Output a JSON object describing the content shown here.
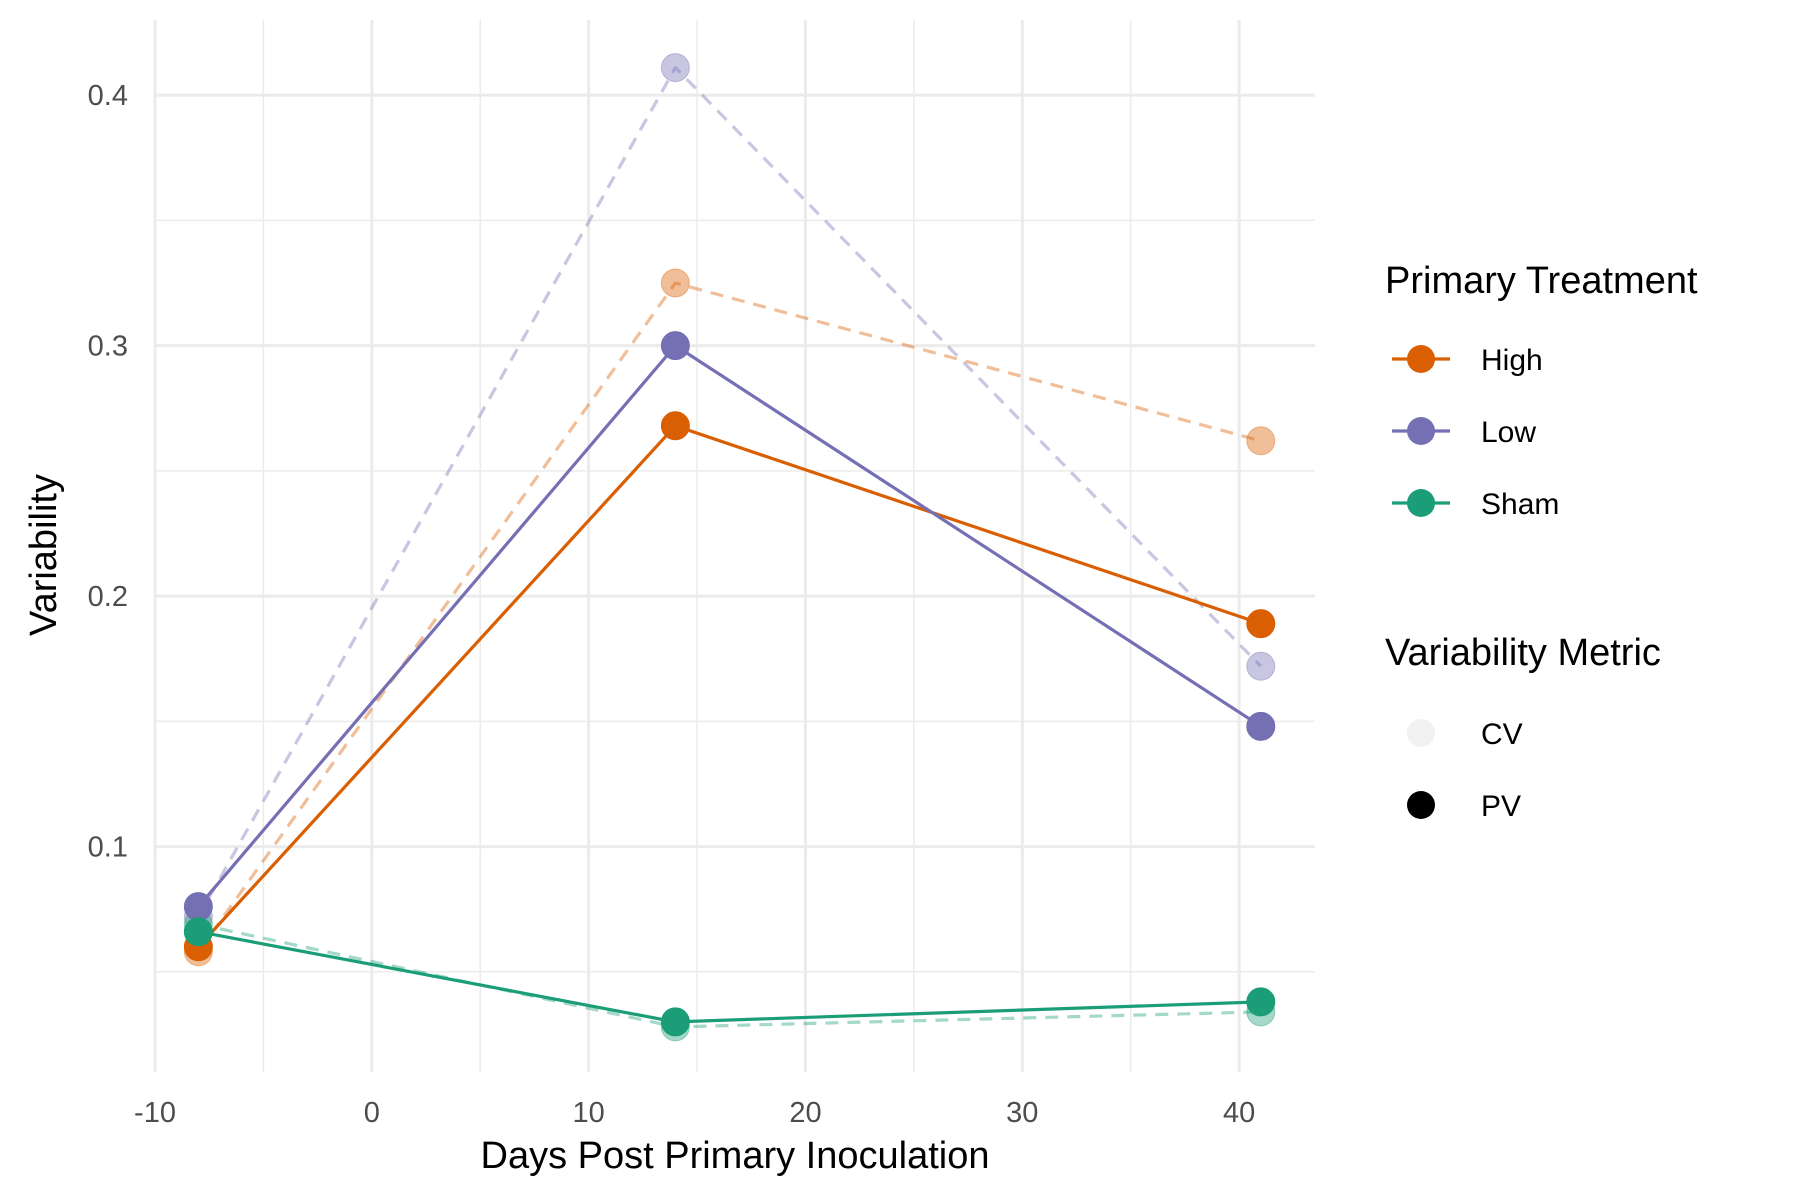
{
  "chart_data": {
    "type": "line",
    "xlabel": "Days Post Primary Inoculation",
    "ylabel": "Variability",
    "xlim": [
      -10,
      43.5
    ],
    "ylim": [
      0.01,
      0.43
    ],
    "x_ticks": [
      -10,
      0,
      10,
      20,
      30,
      40
    ],
    "x_tick_labels": [
      "-10",
      "0",
      "10",
      "20",
      "30",
      "40"
    ],
    "y_ticks": [
      0.1,
      0.2,
      0.3,
      0.4
    ],
    "y_tick_labels": [
      "0.1",
      "0.2",
      "0.3",
      "0.4"
    ],
    "grid": true,
    "legend_position": "right",
    "x": [
      -8,
      14,
      41
    ],
    "series": [
      {
        "treatment": "High",
        "metric": "CV",
        "color": "#d95f02",
        "values": [
          0.058,
          0.325,
          0.262
        ]
      },
      {
        "treatment": "Low",
        "metric": "CV",
        "color": "#7570b3",
        "values": [
          0.072,
          0.411,
          0.172
        ]
      },
      {
        "treatment": "Sham",
        "metric": "CV",
        "color": "#1b9e77",
        "values": [
          0.069,
          0.028,
          0.034
        ]
      },
      {
        "treatment": "High",
        "metric": "PV",
        "color": "#d95f02",
        "values": [
          0.06,
          0.268,
          0.189
        ]
      },
      {
        "treatment": "Low",
        "metric": "PV",
        "color": "#7570b3",
        "values": [
          0.076,
          0.3,
          0.148
        ]
      },
      {
        "treatment": "Sham",
        "metric": "PV",
        "color": "#1b9e77",
        "values": [
          0.066,
          0.03,
          0.038
        ]
      }
    ],
    "legend": {
      "treatment_title": "Primary Treatment",
      "treatments": [
        {
          "label": "High",
          "color": "#d95f02"
        },
        {
          "label": "Low",
          "color": "#7570b3"
        },
        {
          "label": "Sham",
          "color": "#1b9e77"
        }
      ],
      "metric_title": "Variability Metric",
      "metrics": [
        {
          "label": "CV",
          "opacity": 0.4,
          "line": "dashed"
        },
        {
          "label": "PV",
          "opacity": 1,
          "line": "solid"
        }
      ]
    }
  }
}
